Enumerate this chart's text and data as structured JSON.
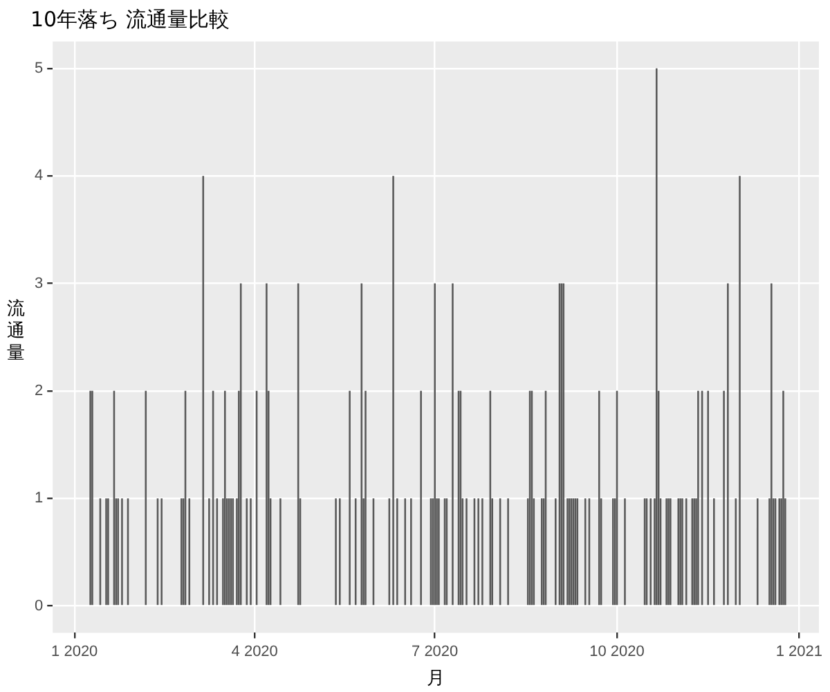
{
  "chart_data": {
    "type": "bar",
    "title": "10年落ち 流通量比較",
    "xlabel": "月",
    "ylabel": "流通量",
    "color": "#595959",
    "grid": true,
    "legend": false,
    "xlim": [
      "2019-12-21",
      "2021-01-11"
    ],
    "xticks": [
      {
        "value": "2020-01-01",
        "label": "1 2020"
      },
      {
        "value": "2020-04-01",
        "label": "4 2020"
      },
      {
        "value": "2020-07-01",
        "label": "7 2020"
      },
      {
        "value": "2020-10-01",
        "label": "10 2020"
      },
      {
        "value": "2021-01-01",
        "label": "1 2021"
      }
    ],
    "ylim": [
      -0.25,
      5.25
    ],
    "yticks": [
      0,
      1,
      2,
      3,
      4,
      5
    ],
    "x": [
      "2020-01-09",
      "2020-01-10",
      "2020-01-14",
      "2020-01-17",
      "2020-01-18",
      "2020-01-21",
      "2020-01-22",
      "2020-01-23",
      "2020-01-25",
      "2020-01-28",
      "2020-02-06",
      "2020-02-12",
      "2020-02-14",
      "2020-02-24",
      "2020-02-25",
      "2020-02-26",
      "2020-02-28",
      "2020-03-06",
      "2020-03-09",
      "2020-03-11",
      "2020-03-13",
      "2020-03-16",
      "2020-03-17",
      "2020-03-18",
      "2020-03-19",
      "2020-03-20",
      "2020-03-21",
      "2020-03-23",
      "2020-03-24",
      "2020-03-25",
      "2020-03-28",
      "2020-03-30",
      "2020-04-02",
      "2020-04-07",
      "2020-04-08",
      "2020-04-09",
      "2020-04-14",
      "2020-04-23",
      "2020-04-24",
      "2020-05-12",
      "2020-05-14",
      "2020-05-19",
      "2020-05-22",
      "2020-05-25",
      "2020-05-26",
      "2020-05-27",
      "2020-05-31",
      "2020-06-08",
      "2020-06-10",
      "2020-06-12",
      "2020-06-16",
      "2020-06-19",
      "2020-06-24",
      "2020-06-29",
      "2020-06-30",
      "2020-07-01",
      "2020-07-02",
      "2020-07-03",
      "2020-07-06",
      "2020-07-07",
      "2020-07-10",
      "2020-07-13",
      "2020-07-14",
      "2020-07-15",
      "2020-07-17",
      "2020-07-21",
      "2020-07-23",
      "2020-07-25",
      "2020-07-29",
      "2020-07-30",
      "2020-08-03",
      "2020-08-07",
      "2020-08-17",
      "2020-08-18",
      "2020-08-19",
      "2020-08-20",
      "2020-08-24",
      "2020-08-25",
      "2020-08-26",
      "2020-08-31",
      "2020-09-02",
      "2020-09-03",
      "2020-09-04",
      "2020-09-06",
      "2020-09-07",
      "2020-09-08",
      "2020-09-09",
      "2020-09-10",
      "2020-09-11",
      "2020-09-15",
      "2020-09-17",
      "2020-09-22",
      "2020-09-23",
      "2020-09-29",
      "2020-09-30",
      "2020-10-01",
      "2020-10-05",
      "2020-10-15",
      "2020-10-16",
      "2020-10-18",
      "2020-10-20",
      "2020-10-21",
      "2020-10-22",
      "2020-10-23",
      "2020-10-26",
      "2020-10-27",
      "2020-10-28",
      "2020-11-01",
      "2020-11-02",
      "2020-11-03",
      "2020-11-05",
      "2020-11-08",
      "2020-11-09",
      "2020-11-10",
      "2020-11-11",
      "2020-11-13",
      "2020-11-16",
      "2020-11-19",
      "2020-11-24",
      "2020-11-26",
      "2020-11-30",
      "2020-12-02",
      "2020-12-11",
      "2020-12-17",
      "2020-12-18",
      "2020-12-19",
      "2020-12-20",
      "2020-12-22",
      "2020-12-23",
      "2020-12-24",
      "2020-12-25"
    ],
    "values": [
      2,
      2,
      1,
      1,
      1,
      2,
      1,
      1,
      1,
      1,
      2,
      1,
      1,
      1,
      1,
      2,
      1,
      4,
      1,
      2,
      1,
      1,
      2,
      1,
      1,
      1,
      1,
      1,
      2,
      3,
      1,
      1,
      2,
      3,
      2,
      1,
      1,
      3,
      1,
      1,
      1,
      2,
      1,
      3,
      1,
      2,
      1,
      1,
      4,
      1,
      1,
      1,
      2,
      1,
      1,
      3,
      1,
      1,
      1,
      1,
      3,
      2,
      2,
      1,
      1,
      1,
      1,
      1,
      2,
      1,
      1,
      1,
      1,
      2,
      2,
      1,
      1,
      1,
      2,
      1,
      3,
      3,
      3,
      1,
      1,
      1,
      1,
      1,
      1,
      1,
      1,
      2,
      1,
      1,
      1,
      2,
      1,
      1,
      1,
      1,
      1,
      5,
      2,
      1,
      1,
      1,
      1,
      1,
      1,
      1,
      1,
      1,
      1,
      1,
      2,
      2,
      2,
      1,
      2,
      3,
      1,
      4,
      1,
      1,
      3,
      1,
      1,
      1,
      1,
      2,
      1
    ]
  }
}
